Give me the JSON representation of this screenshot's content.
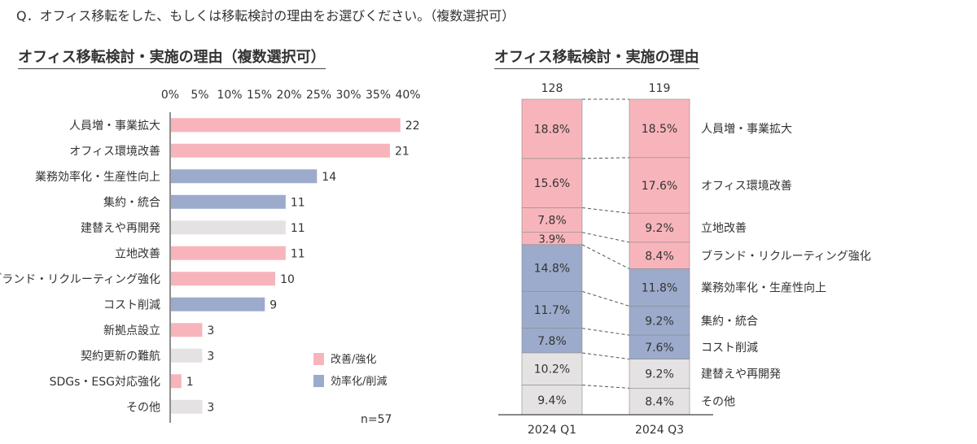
{
  "question": "Q．オフィス移転をした、もしくは移転検討の理由をお選びください。（複数選択可）",
  "colors": {
    "improve": "#f7b5bb",
    "efficiency": "#9cabcb",
    "other": "#e5e2e4",
    "axis": "#444444",
    "connector": "#555555"
  },
  "chart_data": [
    {
      "type": "bar",
      "orientation": "horizontal",
      "title": "オフィス移転検討・実施の理由（複数選択可）",
      "x_ticks": [
        "0%",
        "5%",
        "10%",
        "15%",
        "20%",
        "25%",
        "30%",
        "35%",
        "40%"
      ],
      "xlim": [
        0,
        40
      ],
      "n": 57,
      "n_label": "n=57",
      "legend": [
        {
          "label": "改善/強化",
          "category": "improve"
        },
        {
          "label": "効率化/削減",
          "category": "efficiency"
        }
      ],
      "bars": [
        {
          "label": "人員増・事業拡大",
          "count": 22,
          "category": "improve"
        },
        {
          "label": "オフィス環境改善",
          "count": 21,
          "category": "improve"
        },
        {
          "label": "業務効率化・生産性向上",
          "count": 14,
          "category": "efficiency"
        },
        {
          "label": "集約・統合",
          "count": 11,
          "category": "efficiency"
        },
        {
          "label": "建替えや再開発",
          "count": 11,
          "category": "other"
        },
        {
          "label": "立地改善",
          "count": 11,
          "category": "improve"
        },
        {
          "label": "ブランド・リクルーティング強化",
          "count": 10,
          "category": "improve"
        },
        {
          "label": "コスト削減",
          "count": 9,
          "category": "efficiency"
        },
        {
          "label": "新拠点設立",
          "count": 3,
          "category": "improve"
        },
        {
          "label": "契約更新の難航",
          "count": 3,
          "category": "other"
        },
        {
          "label": "SDGs・ESG対応強化",
          "count": 1,
          "category": "improve"
        },
        {
          "label": "その他",
          "count": 3,
          "category": "other"
        }
      ]
    },
    {
      "type": "stacked_bar",
      "title": "オフィス移転検討・実施の理由",
      "columns": [
        {
          "label": "2024 Q1",
          "total": "128"
        },
        {
          "label": "2024 Q3",
          "total": "119"
        }
      ],
      "segments": [
        {
          "label": "人員増・事業拡大",
          "category": "improve",
          "values": [
            18.8,
            18.5
          ]
        },
        {
          "label": "オフィス環境改善",
          "category": "improve",
          "values": [
            15.6,
            17.6
          ]
        },
        {
          "label": "立地改善",
          "category": "improve",
          "values": [
            7.8,
            9.2
          ]
        },
        {
          "label": "ブランド・リクルーティング強化",
          "category": "improve",
          "values": [
            3.9,
            8.4
          ]
        },
        {
          "label": "業務効率化・生産性向上",
          "category": "efficiency",
          "values": [
            14.8,
            11.8
          ]
        },
        {
          "label": "集約・統合",
          "category": "efficiency",
          "values": [
            11.7,
            9.2
          ]
        },
        {
          "label": "コスト削減",
          "category": "efficiency",
          "values": [
            7.8,
            7.6
          ]
        },
        {
          "label": "建替えや再開発",
          "category": "other",
          "values": [
            10.2,
            9.2
          ]
        },
        {
          "label": "その他",
          "category": "other",
          "values": [
            9.4,
            8.4
          ]
        }
      ]
    }
  ]
}
